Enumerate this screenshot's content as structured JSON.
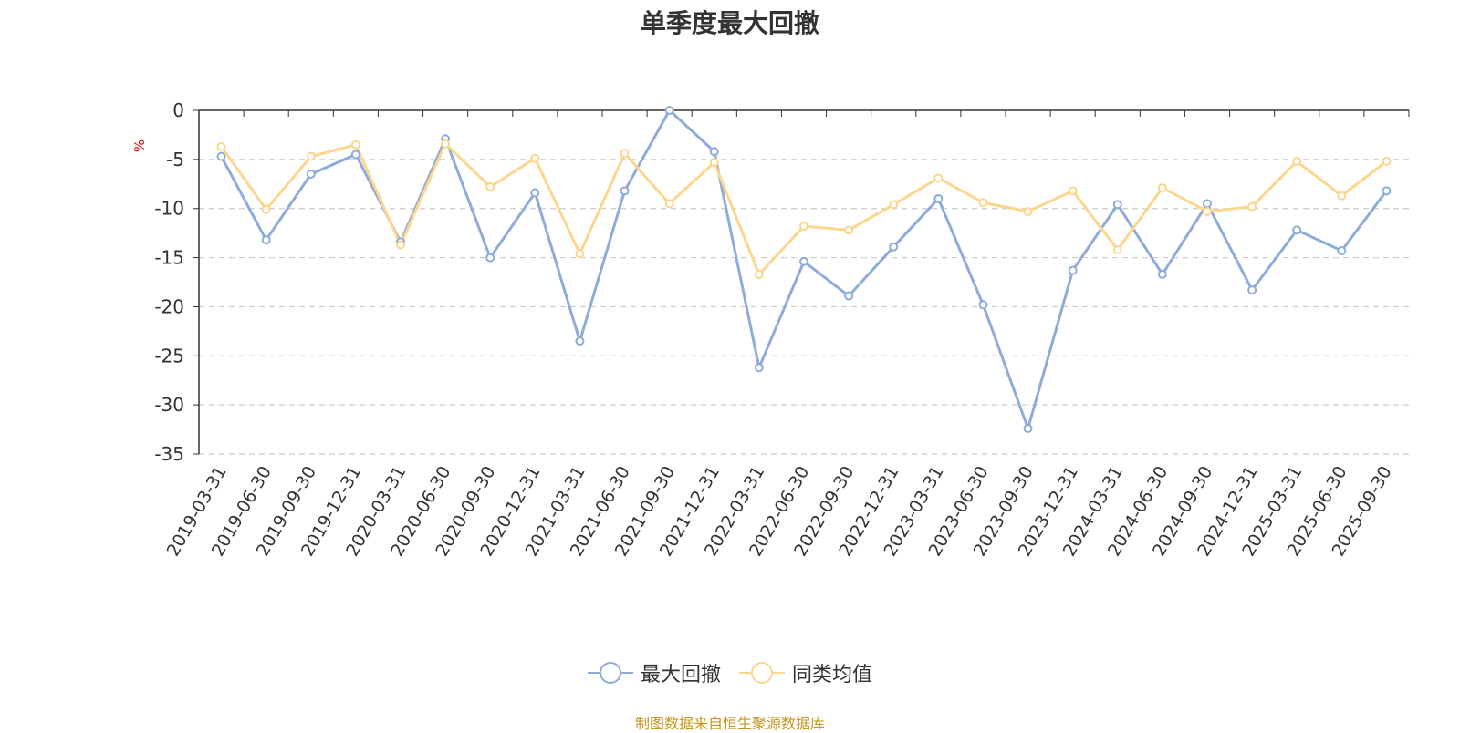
{
  "title": "单季度最大回撤",
  "source_note": "制图数据来自恒生聚源数据库",
  "colors": {
    "series_0": "#8dacd9",
    "series_1": "#fcd68c",
    "grid": "#cccccc",
    "axis": "#333333",
    "unit": "#e00000",
    "source": "#c8961e"
  },
  "chart_data": {
    "type": "line",
    "title": "单季度最大回撤",
    "ylabel": "%",
    "ylim": [
      -35,
      0
    ],
    "yticks": [
      0,
      -5,
      -10,
      -15,
      -20,
      -25,
      -30,
      -35
    ],
    "grid": true,
    "legend_position": "bottom-center",
    "categories": [
      "2019-03-31",
      "2019-06-30",
      "2019-09-30",
      "2019-12-31",
      "2020-03-31",
      "2020-06-30",
      "2020-09-30",
      "2020-12-31",
      "2021-03-31",
      "2021-06-30",
      "2021-09-30",
      "2021-12-31",
      "2022-03-31",
      "2022-06-30",
      "2022-09-30",
      "2022-12-31",
      "2023-03-31",
      "2023-06-30",
      "2023-09-30",
      "2023-12-31",
      "2024-03-31",
      "2024-06-30",
      "2024-09-30",
      "2024-12-31",
      "2025-03-31",
      "2025-06-30",
      "2025-09-30"
    ],
    "series": [
      {
        "name": "最大回撤",
        "values": [
          -4.7,
          -13.2,
          -6.5,
          -4.5,
          -13.4,
          -2.9,
          -15.0,
          -8.4,
          -23.5,
          -8.2,
          0.0,
          -4.2,
          -26.2,
          -15.4,
          -18.9,
          -13.9,
          -9.0,
          -19.8,
          -32.4,
          -16.3,
          -9.6,
          -16.7,
          -9.5,
          -18.3,
          -12.2,
          -14.3,
          -8.2
        ]
      },
      {
        "name": "同类均值",
        "values": [
          -3.7,
          -10.1,
          -4.7,
          -3.5,
          -13.7,
          -3.4,
          -7.8,
          -4.9,
          -14.6,
          -4.4,
          -9.5,
          -5.3,
          -16.7,
          -11.8,
          -12.2,
          -9.6,
          -6.9,
          -9.4,
          -10.3,
          -8.2,
          -14.2,
          -7.9,
          -10.3,
          -9.8,
          -5.2,
          -8.7,
          -5.2
        ]
      }
    ]
  }
}
